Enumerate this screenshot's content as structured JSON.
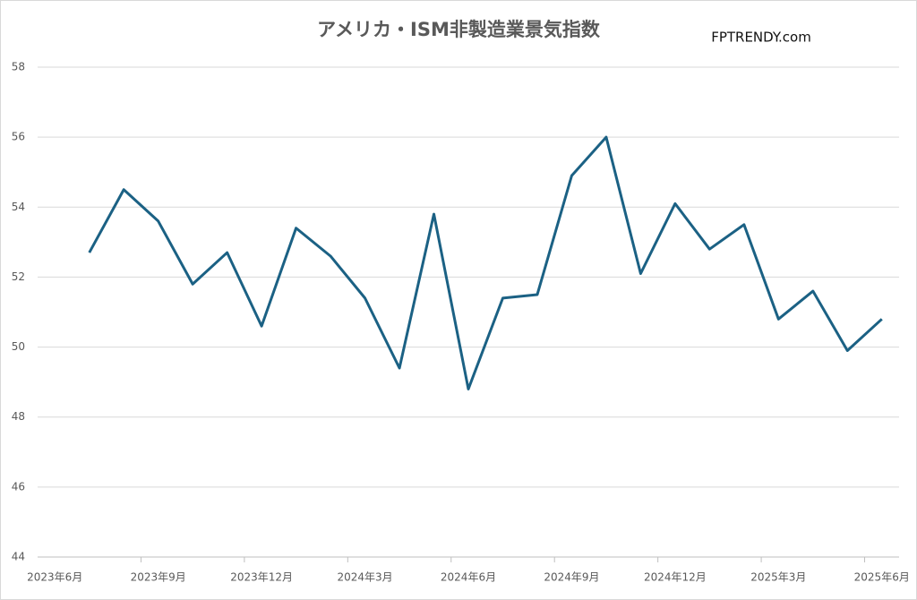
{
  "chart_data": {
    "type": "line",
    "title": "アメリカ・ISM非製造業景気指数",
    "watermark": "FPTRENDY.com",
    "x": [
      "2023年6月",
      null,
      null,
      "2023年9月",
      null,
      null,
      "2023年12月",
      null,
      null,
      "2024年3月",
      null,
      null,
      "2024年6月",
      null,
      null,
      "2024年9月",
      null,
      null,
      "2024年12月",
      null,
      null,
      "2025年3月",
      null,
      null,
      "2025年6月"
    ],
    "series": [
      {
        "name": "ISM非製造業景気指数",
        "color": "#1b6184",
        "values": [
          null,
          52.7,
          54.5,
          53.6,
          51.8,
          52.7,
          50.6,
          53.4,
          52.6,
          51.4,
          49.4,
          53.8,
          48.8,
          51.4,
          51.5,
          54.9,
          56.0,
          52.1,
          54.1,
          52.8,
          53.5,
          50.8,
          51.6,
          49.9,
          50.8
        ]
      }
    ],
    "ylim": [
      44,
      58
    ],
    "yticks": [
      44,
      46,
      48,
      50,
      52,
      54,
      56,
      58
    ],
    "grid": true
  }
}
